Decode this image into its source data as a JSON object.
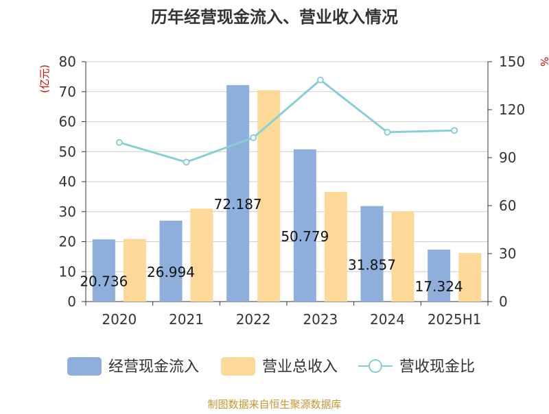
{
  "chart_data": {
    "type": "bar",
    "title": "历年经营现金流入、营业收入情况",
    "categories": [
      "2020",
      "2021",
      "2022",
      "2023",
      "2024",
      "2025H1"
    ],
    "series": [
      {
        "name": "经营现金流入",
        "type": "bar",
        "axis": "left",
        "color": "#8eaedb",
        "values": [
          20.736,
          26.994,
          72.187,
          50.779,
          31.857,
          17.324
        ],
        "data_labels": [
          "20.736",
          "26.994",
          "72.187",
          "50.779",
          "31.857",
          "17.324"
        ]
      },
      {
        "name": "营业总收入",
        "type": "bar",
        "axis": "left",
        "color": "#fdd999",
        "values": [
          20.9,
          31.0,
          70.5,
          36.6,
          30.1,
          16.2
        ]
      },
      {
        "name": "营收现金比",
        "type": "line",
        "axis": "right",
        "color": "#86d0d5",
        "values": [
          99.5,
          87.2,
          102.5,
          138.6,
          105.9,
          107.0
        ]
      }
    ],
    "left_axis": {
      "label": "(亿元)",
      "min": 0,
      "max": 80,
      "ticks": [
        "0",
        "10",
        "20",
        "30",
        "40",
        "50",
        "60",
        "70",
        "80"
      ]
    },
    "right_axis": {
      "label": "%",
      "min": 0,
      "max": 150,
      "ticks": [
        "0",
        "30",
        "60",
        "90",
        "120",
        "150"
      ]
    },
    "grid": true,
    "legend_position": "bottom"
  },
  "source": "制图数据来自恒生聚源数据库"
}
